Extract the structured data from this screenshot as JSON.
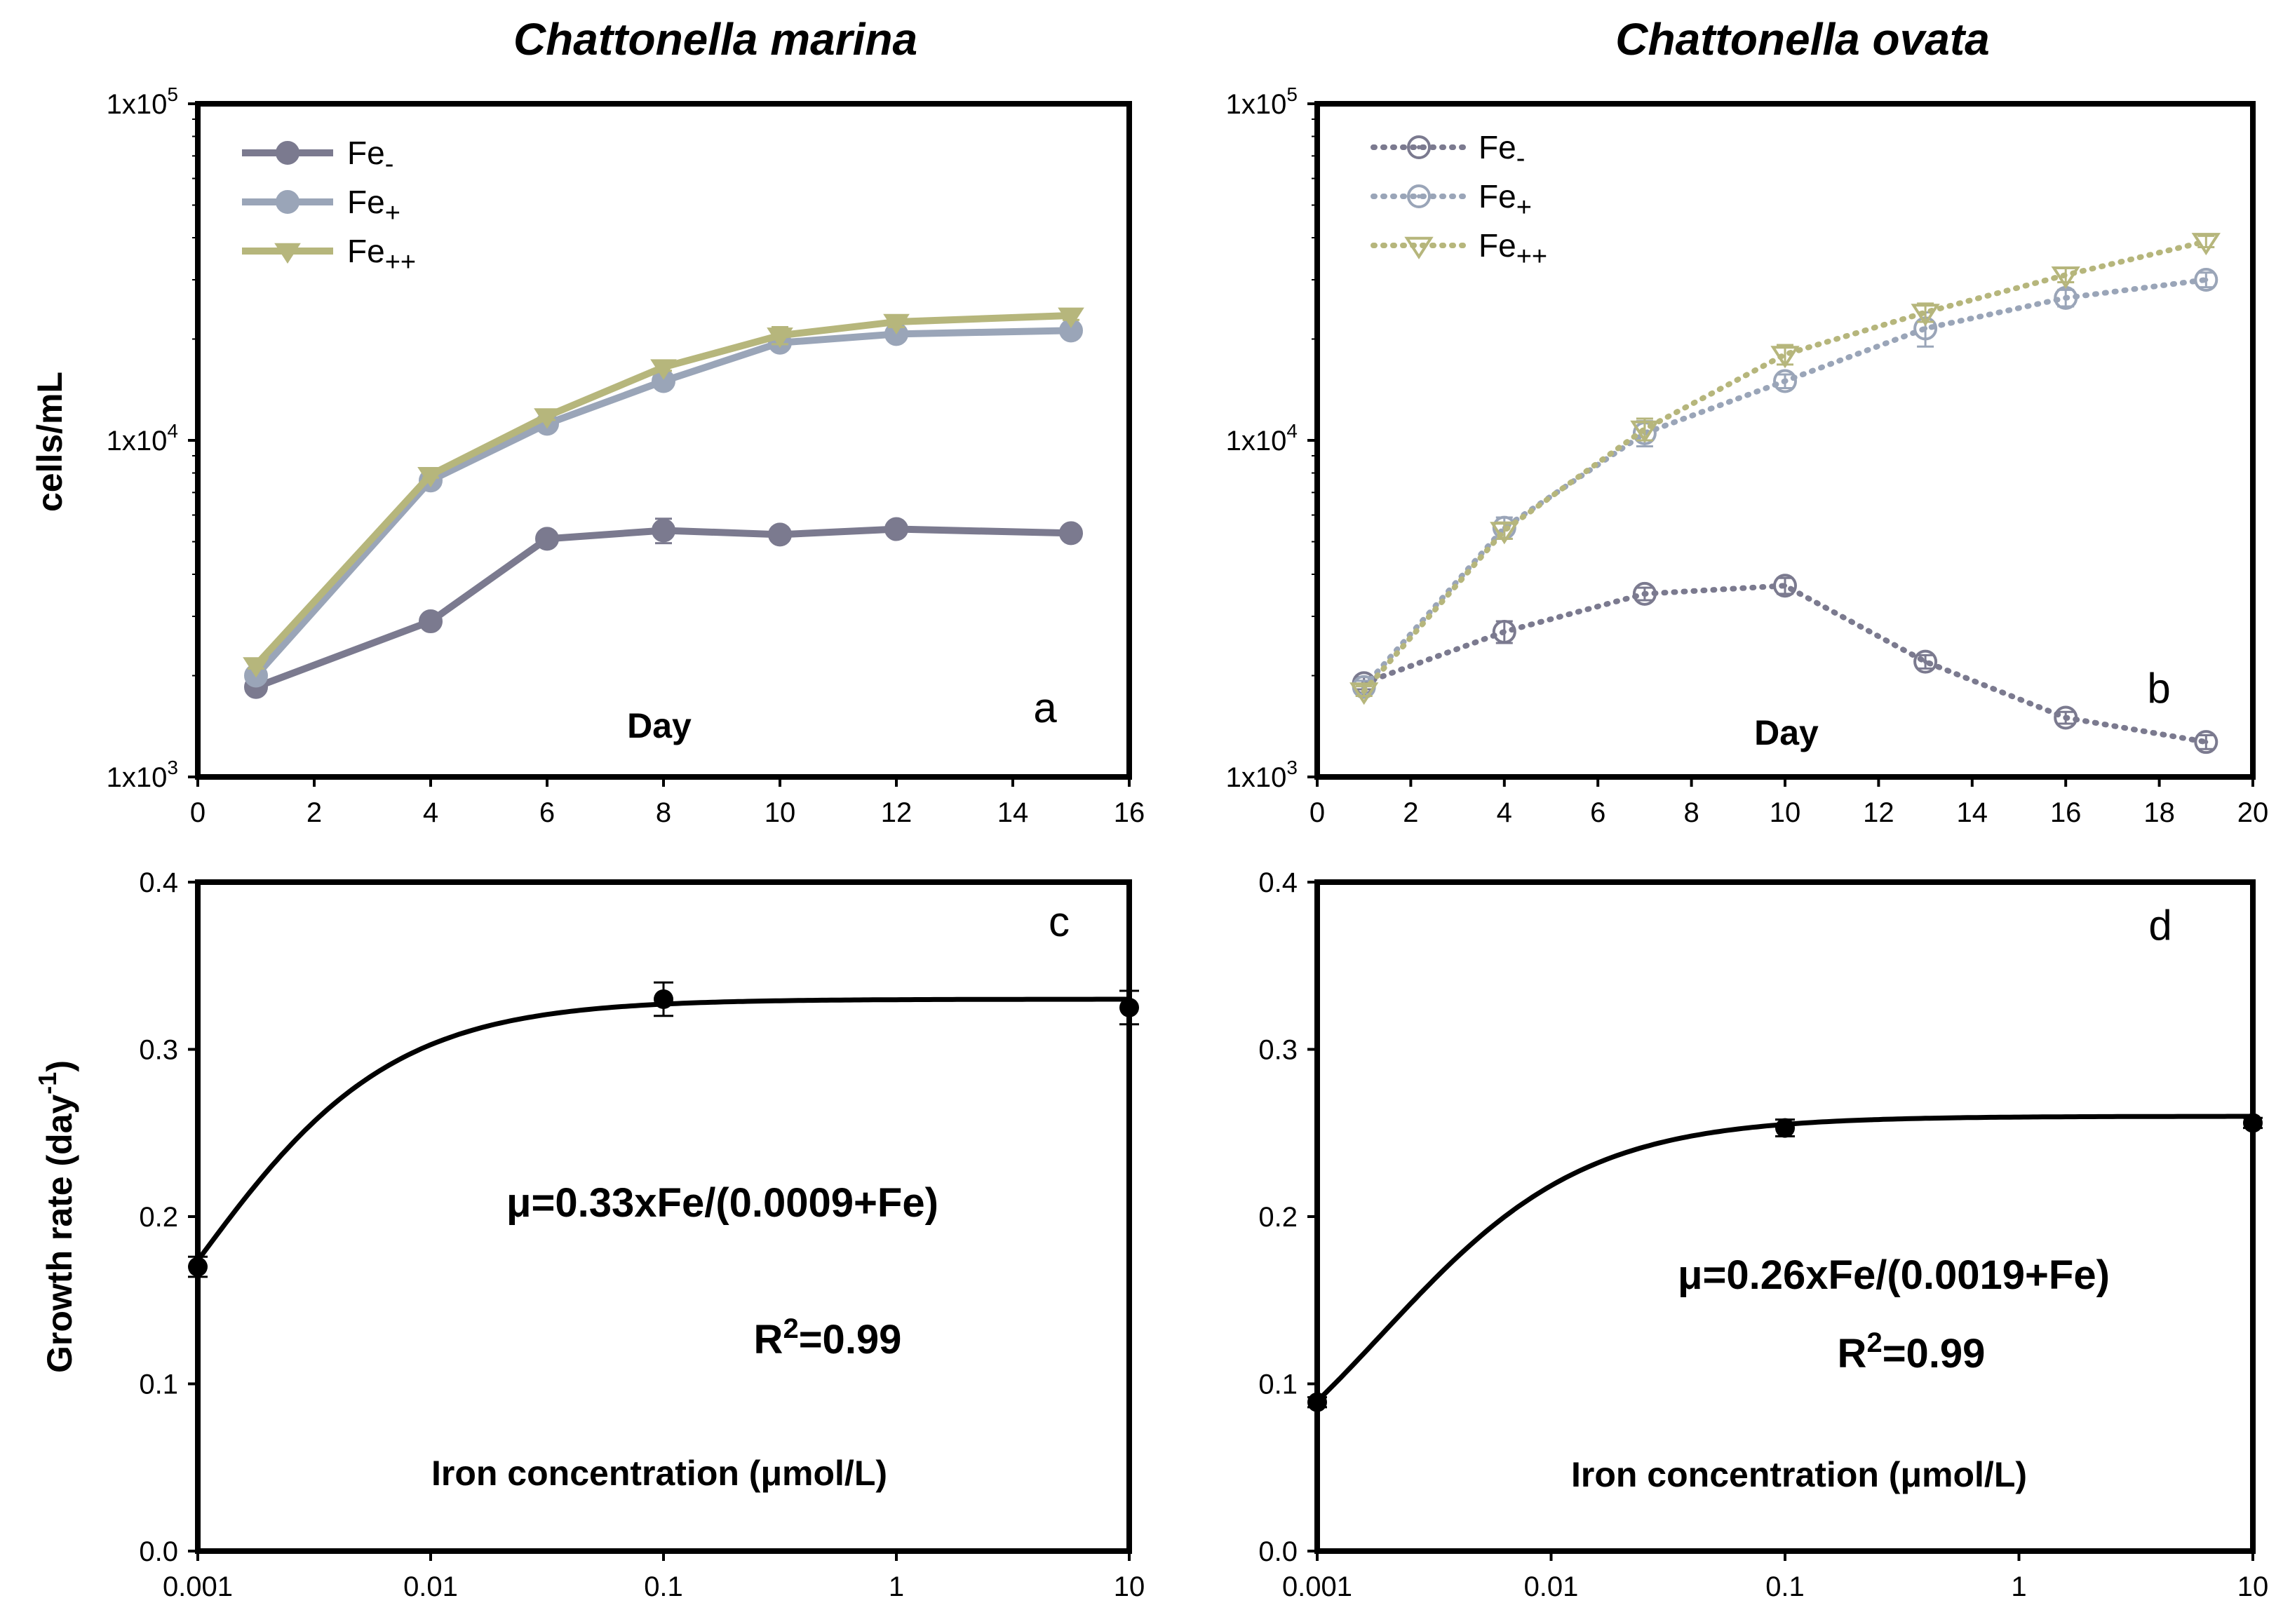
{
  "chart_data": [
    {
      "panel": "a",
      "type": "line",
      "title": "Chattonella marina",
      "xlabel": "Day",
      "ylabel": "cells/mL",
      "yscale": "log",
      "ylim": [
        1000,
        100000
      ],
      "xlim": [
        0,
        16
      ],
      "xticks": [
        "0",
        "2",
        "4",
        "6",
        "8",
        "10",
        "12",
        "14",
        "16"
      ],
      "yticks": [
        {
          "base": "1x10",
          "exp": "3"
        },
        {
          "base": "1x10",
          "exp": "4"
        },
        {
          "base": "1x10",
          "exp": "5"
        }
      ],
      "legend_position": "top-left",
      "marker_style": "filled",
      "series": [
        {
          "name": "Fe",
          "sub": "-",
          "marker": "circle",
          "color": "#7b7a8f",
          "x": [
            1,
            4,
            6,
            8,
            10,
            12,
            15
          ],
          "values": [
            1850,
            2900,
            5100,
            5400,
            5250,
            5450,
            5300
          ],
          "errors": [
            60,
            80,
            150,
            450,
            200,
            200,
            150
          ]
        },
        {
          "name": "Fe",
          "sub": "+",
          "marker": "circle",
          "color": "#9aa5b8",
          "x": [
            1,
            4,
            6,
            8,
            10,
            12,
            15
          ],
          "values": [
            2000,
            7600,
            11200,
            15000,
            19500,
            20700,
            21200
          ],
          "errors": [
            50,
            150,
            300,
            400,
            900,
            600,
            600
          ]
        },
        {
          "name": "Fe",
          "sub": "++",
          "marker": "triangle",
          "color": "#b6b67c",
          "x": [
            1,
            4,
            6,
            8,
            10,
            12,
            15
          ],
          "values": [
            2150,
            7900,
            11800,
            16500,
            20500,
            22500,
            23500
          ],
          "errors": [
            50,
            150,
            300,
            400,
            1200,
            800,
            700
          ]
        }
      ]
    },
    {
      "panel": "b",
      "type": "line",
      "title": "Chattonella ovata",
      "xlabel": "Day",
      "ylabel": "",
      "yscale": "log",
      "ylim": [
        1000,
        100000
      ],
      "xlim": [
        0,
        20
      ],
      "xticks": [
        "0",
        "2",
        "4",
        "6",
        "8",
        "10",
        "12",
        "14",
        "16",
        "18",
        "20"
      ],
      "yticks": [
        {
          "base": "1x10",
          "exp": "3"
        },
        {
          "base": "1x10",
          "exp": "4"
        },
        {
          "base": "1x10",
          "exp": "5"
        }
      ],
      "legend_position": "top-left",
      "marker_style": "open",
      "series": [
        {
          "name": "Fe",
          "sub": "-",
          "marker": "circle",
          "color": "#7b7a8f",
          "x": [
            1,
            4,
            7,
            10,
            13,
            16,
            19
          ],
          "values": [
            1900,
            2700,
            3500,
            3700,
            2200,
            1500,
            1270
          ],
          "errors": [
            80,
            200,
            150,
            200,
            100,
            60,
            60
          ]
        },
        {
          "name": "Fe",
          "sub": "+",
          "marker": "circle",
          "color": "#9aa5b8",
          "x": [
            1,
            4,
            7,
            10,
            13,
            16,
            19
          ],
          "values": [
            1850,
            5500,
            10500,
            15000,
            21500,
            26500,
            30000
          ],
          "errors": [
            80,
            400,
            900,
            700,
            2500,
            1500,
            1500
          ]
        },
        {
          "name": "Fe",
          "sub": "++",
          "marker": "triangle",
          "color": "#b6b67c",
          "x": [
            1,
            4,
            7,
            10,
            13,
            16,
            19
          ],
          "values": [
            1800,
            5400,
            10800,
            18000,
            24000,
            31000,
            39000
          ],
          "errors": [
            60,
            300,
            800,
            1200,
            1500,
            1500,
            1500
          ]
        }
      ]
    },
    {
      "panel": "c",
      "type": "scatter",
      "xlabel": "Iron concentration (μmol/L)",
      "ylabel": "Growth rate (day",
      "ylabel_sup": "-1",
      "ylabel_close": ")",
      "xscale": "log",
      "xlim": [
        0.001,
        10
      ],
      "ylim": [
        0,
        0.4
      ],
      "xticks": [
        "0.001",
        "0.01",
        "0.1",
        "1",
        "10"
      ],
      "yticks": [
        "0.0",
        "0.1",
        "0.2",
        "0.3",
        "0.4"
      ],
      "x": [
        0.001,
        0.1,
        10
      ],
      "values": [
        0.17,
        0.33,
        0.325
      ],
      "errors": [
        0.006,
        0.01,
        0.01
      ],
      "fit": {
        "mu_max": 0.33,
        "k": 0.0009
      },
      "equation": "μ=0.33xFe/(0.0009+Fe)",
      "r2_base": "R",
      "r2_sup": "2",
      "r2_rest": "=0.99"
    },
    {
      "panel": "d",
      "type": "scatter",
      "xlabel": "Iron concentration (μmol/L)",
      "ylabel": "",
      "xscale": "log",
      "xlim": [
        0.001,
        10
      ],
      "ylim": [
        0,
        0.4
      ],
      "xticks": [
        "0.001",
        "0.01",
        "0.1",
        "1",
        "10"
      ],
      "yticks": [
        "0.0",
        "0.1",
        "0.2",
        "0.3",
        "0.4"
      ],
      "x": [
        0.001,
        0.1,
        10
      ],
      "values": [
        0.089,
        0.253,
        0.256
      ],
      "errors": [
        0.003,
        0.005,
        0.003
      ],
      "fit": {
        "mu_max": 0.26,
        "k": 0.0019
      },
      "equation": "μ=0.26xFe/(0.0019+Fe)",
      "r2_base": "R",
      "r2_sup": "2",
      "r2_rest": "=0.99"
    }
  ]
}
